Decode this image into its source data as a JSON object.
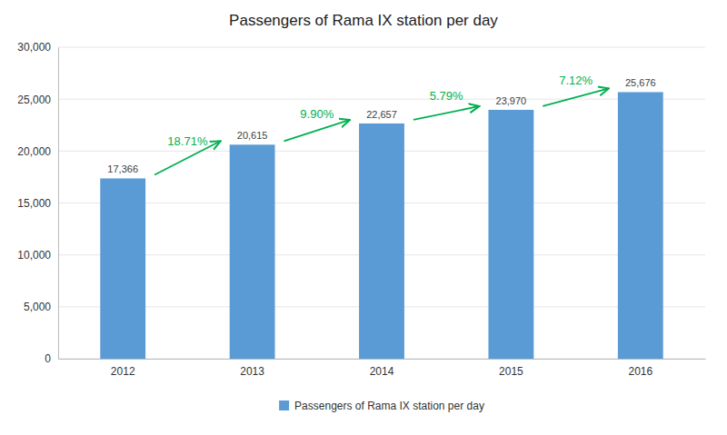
{
  "chart_data": {
    "type": "bar",
    "title": "Passengers of Rama IX station per day",
    "categories": [
      "2012",
      "2013",
      "2014",
      "2015",
      "2016"
    ],
    "series": [
      {
        "name": "Passengers of Rama IX station per day",
        "color": "#5B9BD5",
        "values": [
          17366,
          20615,
          22657,
          23970,
          25676
        ],
        "value_labels": [
          "17,366",
          "20,615",
          "22,657",
          "23,970",
          "25,676"
        ]
      }
    ],
    "annotations": [
      {
        "text": "18.71%",
        "color": "#00B050"
      },
      {
        "text": "9.90%",
        "color": "#00B050"
      },
      {
        "text": "5.79%",
        "color": "#00B050"
      },
      {
        "text": "7.12%",
        "color": "#00B050"
      }
    ],
    "ylim": [
      0,
      30000
    ],
    "yticks": [
      0,
      {
        "value": 5000,
        "label": "5,000"
      },
      {
        "value": 10000,
        "label": "10,000"
      },
      {
        "value": 15000,
        "label": "15,000"
      },
      {
        "value": 20000,
        "label": "20,000"
      },
      {
        "value": 25000,
        "label": "25,000"
      },
      {
        "value": 30000,
        "label": "30,000"
      }
    ],
    "grid": true,
    "data_labels": true,
    "legend": "bottom"
  }
}
